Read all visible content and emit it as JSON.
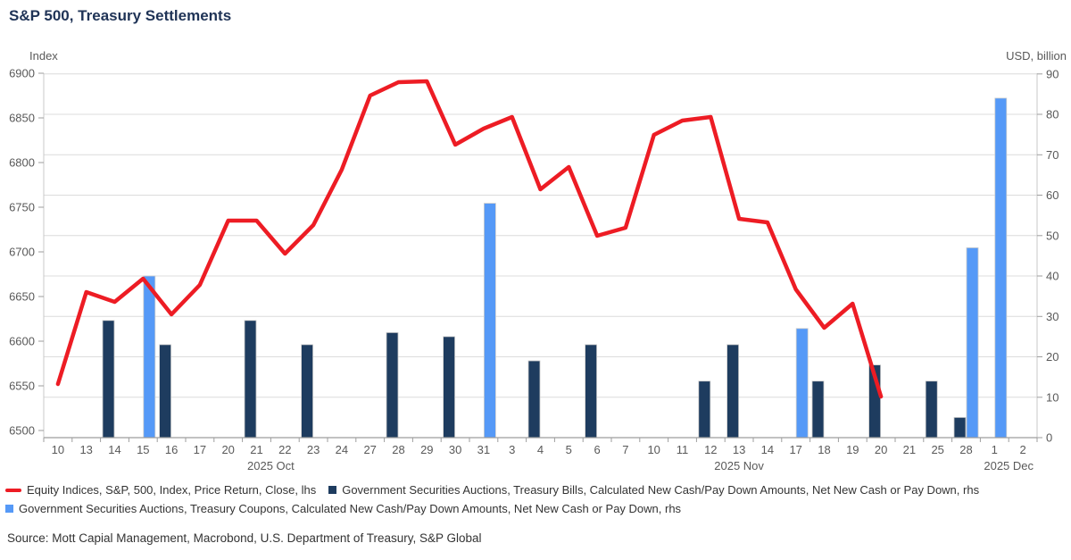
{
  "header": {
    "title": "S&P 500, Treasury Settlements"
  },
  "source": "Source: Mott Capial Management, Macrobond, U.S. Department of Treasury, S&P Global",
  "legend": {
    "items": [
      {
        "label": "Equity Indices, S&P, 500, Index, Price Return, Close, lhs",
        "marker": "line-marker",
        "color": "#ed1c24"
      },
      {
        "label": "Government Securities Auctions, Treasury Bills, Calculated New Cash/Pay Down Amounts, Net New Cash or Pay Down, rhs",
        "marker": "square-marker",
        "color": "#1e3c5f"
      },
      {
        "label": "Government Securities Auctions, Treasury Coupons, Calculated New Cash/Pay Down Amounts, Net New Cash or Pay Down, rhs",
        "marker": "square-marker",
        "color": "#5599f7"
      }
    ]
  },
  "chart_data": {
    "type": "combo-line-bar",
    "title": "S&P 500, Treasury Settlements",
    "categories": [
      "10",
      "13",
      "14",
      "15",
      "16",
      "17",
      "20",
      "21",
      "22",
      "23",
      "24",
      "27",
      "28",
      "29",
      "30",
      "31",
      "3",
      "4",
      "5",
      "6",
      "7",
      "10",
      "11",
      "12",
      "13",
      "14",
      "17",
      "18",
      "19",
      "20",
      "21",
      "25",
      "28",
      "1",
      "2"
    ],
    "month_groups": [
      {
        "label": "2025 Oct",
        "start": 0,
        "end": 15
      },
      {
        "label": "2025 Nov",
        "start": 16,
        "end": 32
      },
      {
        "label": "2025 Dec",
        "start": 33,
        "end": 34
      }
    ],
    "lhs_axis": {
      "label": "Index",
      "min": 6500,
      "max": 6900,
      "step": 50
    },
    "rhs_axis": {
      "label": "USD, billion",
      "min": 0,
      "max": 90,
      "step": 10
    },
    "grid": "horizontal-on",
    "legend_position": "bottom",
    "series": [
      {
        "name": "Equity Indices, S&P, 500, Index, Price Return, Close, lhs",
        "type": "line",
        "axis": "lhs",
        "color": "#ed1c24",
        "values": [
          6552,
          6655,
          6644,
          6670,
          6630,
          6663,
          6735,
          6735,
          6698,
          6730,
          6792,
          6875,
          6890,
          6891,
          6820,
          6838,
          6851,
          6770,
          6795,
          6718,
          6727,
          6831,
          6847,
          6851,
          6737,
          6733,
          6658,
          6615,
          6642,
          6538,
          null,
          null,
          null,
          null,
          null
        ]
      },
      {
        "name": "Government Securities Auctions, Treasury Bills, Calculated New Cash/Pay Down Amounts, Net New Cash or Pay Down, rhs",
        "type": "bar",
        "axis": "rhs",
        "color": "#1e3c5f",
        "offset": "left",
        "values": [
          null,
          null,
          29,
          null,
          23,
          null,
          null,
          29,
          null,
          23,
          null,
          null,
          26,
          null,
          25,
          null,
          null,
          19,
          null,
          23,
          null,
          null,
          null,
          14,
          23,
          null,
          null,
          14,
          null,
          18,
          null,
          14,
          5,
          null,
          null
        ]
      },
      {
        "name": "Government Securities Auctions, Treasury Coupons, Calculated New Cash/Pay Down Amounts, Net New Cash or Pay Down, rhs",
        "type": "bar",
        "axis": "rhs",
        "color": "#5599f7",
        "offset": "right",
        "values": [
          null,
          null,
          null,
          40,
          null,
          null,
          null,
          null,
          null,
          null,
          null,
          null,
          null,
          null,
          null,
          58,
          null,
          null,
          null,
          null,
          null,
          null,
          null,
          null,
          null,
          null,
          27,
          null,
          null,
          null,
          null,
          null,
          47,
          84,
          null
        ]
      }
    ],
    "style": {
      "gridline_color": "#dcdcdc",
      "axis_line_color": "#c8c8c8",
      "bottom_axis_color": "#9e9e9e",
      "tick_label_color": "#595959",
      "bar_stroke": "#cccccc"
    }
  }
}
